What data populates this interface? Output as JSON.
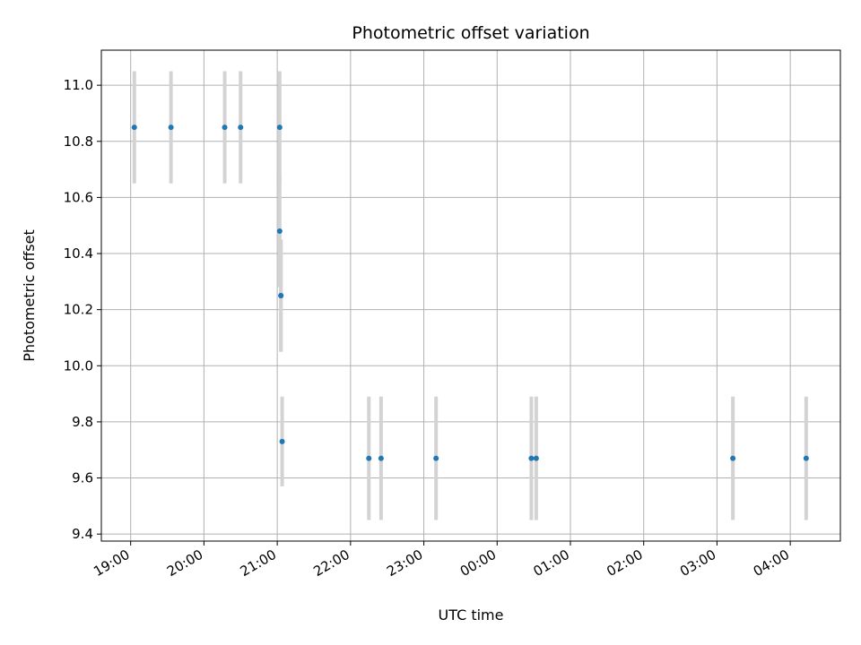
{
  "chart_data": {
    "type": "scatter",
    "title": "Photometric offset variation",
    "xlabel": "UTC time",
    "ylabel": "Photometric offset",
    "grid": true,
    "legend": "none",
    "x_axis_type": "time",
    "x_tick_labels": [
      "19:00",
      "20:00",
      "21:00",
      "22:00",
      "23:00",
      "00:00",
      "01:00",
      "02:00",
      "03:00",
      "04:00"
    ],
    "y_ticks": [
      9.4,
      9.6,
      9.8,
      10.0,
      10.2,
      10.4,
      10.6,
      10.8,
      11.0
    ],
    "y_tick_labels": [
      "9.4",
      "9.6",
      "9.8",
      "10.0",
      "10.2",
      "10.4",
      "10.6",
      "10.8",
      "11.0"
    ],
    "xlim": [
      "18:36",
      "04:41"
    ],
    "ylim": [
      9.375,
      11.125
    ],
    "marker_color": "#1f77b4",
    "errorbar_color": "#d3d3d3",
    "points": [
      {
        "x": "19:03",
        "y": 10.85,
        "err": 0.2
      },
      {
        "x": "19:33",
        "y": 10.85,
        "err": 0.2
      },
      {
        "x": "20:17",
        "y": 10.85,
        "err": 0.2
      },
      {
        "x": "20:30",
        "y": 10.85,
        "err": 0.2
      },
      {
        "x": "21:02",
        "y": 10.85,
        "err": 0.2
      },
      {
        "x": "21:02",
        "y": 10.48,
        "err": 0.2
      },
      {
        "x": "21:03",
        "y": 10.25,
        "err": 0.2
      },
      {
        "x": "21:03",
        "y": 10.25,
        "err": 0.2
      },
      {
        "x": "21:04",
        "y": 9.73,
        "err": 0.16
      },
      {
        "x": "22:15",
        "y": 9.67,
        "err": 0.22
      },
      {
        "x": "22:25",
        "y": 9.67,
        "err": 0.22
      },
      {
        "x": "23:10",
        "y": 9.67,
        "err": 0.22
      },
      {
        "x": "00:28",
        "y": 9.67,
        "err": 0.22
      },
      {
        "x": "00:32",
        "y": 9.67,
        "err": 0.22
      },
      {
        "x": "03:13",
        "y": 9.67,
        "err": 0.22
      },
      {
        "x": "04:13",
        "y": 9.67,
        "err": 0.22
      }
    ]
  },
  "colors": {
    "grid": "#b0b0b0",
    "axes": "#000000"
  }
}
